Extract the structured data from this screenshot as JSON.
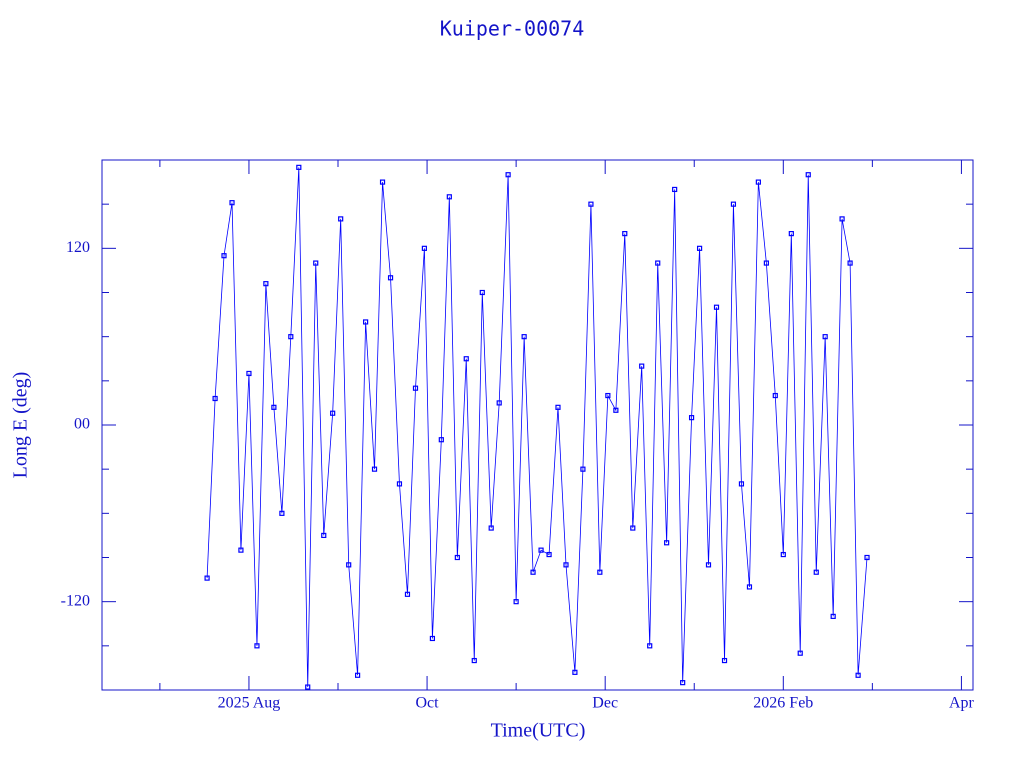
{
  "chart_data": {
    "type": "scatter",
    "title": "Kuiper-00074",
    "xlabel": "Time(UTC)",
    "ylabel": "Long E (deg)",
    "xlim": [
      6.35,
      16.13
    ],
    "ylim": [
      -180,
      180
    ],
    "xticks": [
      {
        "value": 8,
        "label": "2025 Aug"
      },
      {
        "value": 10,
        "label": "Oct"
      },
      {
        "value": 12,
        "label": "Dec"
      },
      {
        "value": 14,
        "label": "2026 Feb"
      },
      {
        "value": 16,
        "label": "Apr"
      }
    ],
    "yticks": [
      -120,
      {
        "value": 0,
        "label": "00"
      },
      120
    ],
    "color": "#0000ff",
    "x": [
      7.53,
      7.62,
      7.72,
      7.81,
      7.91,
      8.0,
      8.09,
      8.19,
      8.28,
      8.37,
      8.47,
      8.56,
      8.66,
      8.75,
      8.84,
      8.94,
      9.03,
      9.12,
      9.22,
      9.31,
      9.41,
      9.5,
      9.59,
      9.69,
      9.78,
      9.87,
      9.97,
      10.06,
      10.16,
      10.25,
      10.34,
      10.44,
      10.53,
      10.62,
      10.72,
      10.81,
      10.91,
      11.0,
      11.09,
      11.19,
      11.28,
      11.37,
      11.47,
      11.56,
      11.66,
      11.75,
      11.84,
      11.94,
      12.03,
      12.12,
      12.22,
      12.31,
      12.41,
      12.5,
      12.59,
      12.69,
      12.78,
      12.87,
      12.97,
      13.06,
      13.16,
      13.25,
      13.34,
      13.44,
      13.53,
      13.62,
      13.72,
      13.81,
      13.91,
      14.0,
      14.09,
      14.19,
      14.28,
      14.37,
      14.47,
      14.56,
      14.66,
      14.75,
      14.84,
      14.94
    ],
    "values": [
      -104,
      18,
      115,
      151,
      -85,
      35,
      -150,
      96,
      12,
      -60,
      60,
      175,
      -178,
      110,
      -75,
      8,
      140,
      -95,
      -170,
      70,
      -30,
      165,
      100,
      -40,
      -115,
      25,
      120,
      -145,
      -10,
      155,
      -90,
      45,
      -160,
      90,
      -70,
      15,
      170,
      -120,
      60,
      -100,
      -85,
      -88,
      12,
      -95,
      -168,
      -30,
      150,
      -100,
      20,
      10,
      130,
      -70,
      40,
      -150,
      110,
      -80,
      160,
      -175,
      5,
      120,
      -95,
      80,
      -160,
      150,
      -40,
      -110,
      165,
      110,
      20,
      -88,
      130,
      -155,
      170,
      -100,
      60,
      -130,
      140,
      110,
      -170,
      -90
    ]
  }
}
